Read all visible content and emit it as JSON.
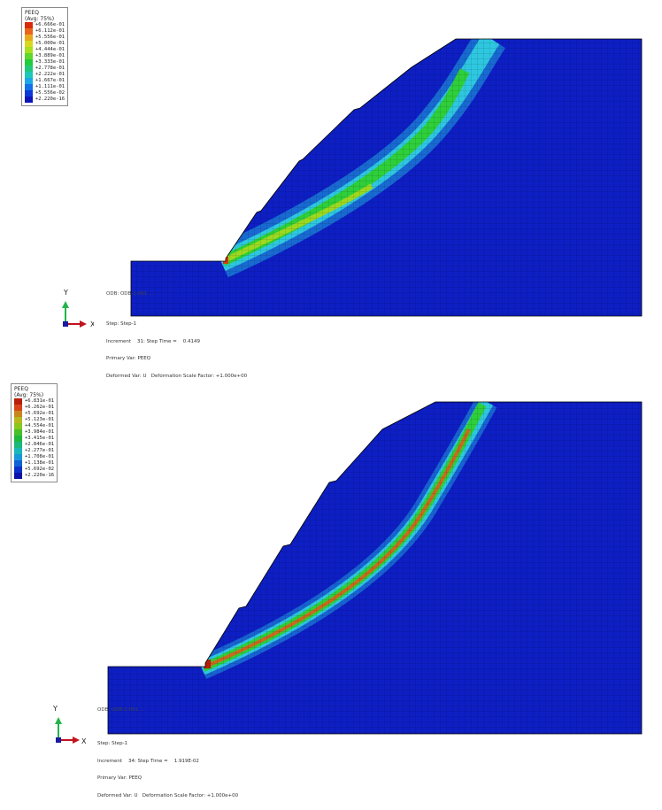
{
  "colors": {
    "mesh_blue": "#0d1fc4",
    "band_cyan": "#2ec7e0",
    "band_green": "#2ecf3a",
    "band_yellow": "#c9e020",
    "band_red": "#d83a0c",
    "axis_x": "#c0141e",
    "axis_y": "#22b44a"
  },
  "panels": [
    {
      "legend": {
        "title": "PEEQ\n(Avg: 75%)",
        "entries": [
          {
            "value": "+6.666e-01",
            "color": "#d82a0a"
          },
          {
            "value": "+6.112e-01",
            "color": "#e8641a"
          },
          {
            "value": "+5.556e-01",
            "color": "#e8a81e"
          },
          {
            "value": "+5.000e-01",
            "color": "#d8d81e"
          },
          {
            "value": "+4.444e-01",
            "color": "#a8e01e"
          },
          {
            "value": "+3.889e-01",
            "color": "#5ed82a"
          },
          {
            "value": "+3.333e-01",
            "color": "#22cc3c"
          },
          {
            "value": "+2.778e-01",
            "color": "#20c87a"
          },
          {
            "value": "+2.222e-01",
            "color": "#1ec8b8"
          },
          {
            "value": "+1.667e-01",
            "color": "#1aa8e8"
          },
          {
            "value": "+1.111e-01",
            "color": "#1270e8"
          },
          {
            "value": "+5.556e-02",
            "color": "#0c38d8"
          },
          {
            "value": "+2.220e-16",
            "color": "#0c14b8"
          }
        ]
      },
      "odb_text": "ODB: ODB-1-001 ...",
      "caption": {
        "step": "Step: Step-1",
        "increment": "Increment    31: Step Time =    0.4149",
        "primary": "Primary Var: PEEQ",
        "deformed": "Deformed Var: U   Deformation Scale Factor: +1.000e+00"
      },
      "triad": {
        "x": "X",
        "y": "Y"
      }
    },
    {
      "legend": {
        "title": "PEEQ\n(Avg: 75%)",
        "entries": [
          {
            "value": "+6.831e-01",
            "color": "#b81e0a"
          },
          {
            "value": "+6.262e-01",
            "color": "#d8421a"
          },
          {
            "value": "+5.692e-01",
            "color": "#c8861e"
          },
          {
            "value": "+5.123e-01",
            "color": "#b8b81e"
          },
          {
            "value": "+4.554e-01",
            "color": "#8ac81e"
          },
          {
            "value": "+3.984e-01",
            "color": "#48c02a"
          },
          {
            "value": "+3.415e-01",
            "color": "#1eb83c"
          },
          {
            "value": "+2.846e-01",
            "color": "#1ab87a"
          },
          {
            "value": "+2.277e-01",
            "color": "#1ab8b8"
          },
          {
            "value": "+1.708e-01",
            "color": "#1898d8"
          },
          {
            "value": "+1.138e-01",
            "color": "#1060d8"
          },
          {
            "value": "+5.692e-02",
            "color": "#0a30c8"
          },
          {
            "value": "+2.220e-16",
            "color": "#0a12a8"
          }
        ]
      },
      "odb_text": "ODB: ODB-2-001 ...",
      "caption": {
        "step": "Step: Step-1",
        "increment": "Increment    34: Step Time =    1.919E-02",
        "primary": "Primary Var: PEEQ",
        "deformed": "Deformed Var: U   Deformation Scale Factor: +1.000e+00"
      },
      "triad": {
        "x": "X",
        "y": "Y"
      }
    }
  ]
}
